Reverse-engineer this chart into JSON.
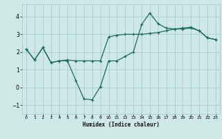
{
  "xlabel": "Humidex (Indice chaleur)",
  "bg_color": "#cde8e5",
  "grid_color": "#a8ccca",
  "line_color": "#1a6b5a",
  "line1_x": [
    0,
    1,
    2,
    3,
    4,
    5,
    6,
    7,
    8,
    9,
    10,
    11,
    12,
    13,
    14,
    15,
    16,
    17,
    18,
    19,
    20,
    21,
    22,
    23
  ],
  "line1_y": [
    2.15,
    1.55,
    2.25,
    1.4,
    1.5,
    1.55,
    1.5,
    1.5,
    1.5,
    1.5,
    2.85,
    2.95,
    3.0,
    3.0,
    3.0,
    3.05,
    3.1,
    3.2,
    3.3,
    3.35,
    3.4,
    3.2,
    2.8,
    2.7
  ],
  "line2_x": [
    0,
    1,
    2,
    3,
    4,
    5,
    6,
    7,
    8,
    9,
    10,
    11,
    12,
    13,
    14,
    15,
    16,
    17,
    18,
    19,
    20,
    21,
    22,
    23
  ],
  "line2_y": [
    2.15,
    1.55,
    2.25,
    1.4,
    1.5,
    1.5,
    0.4,
    -0.65,
    -0.7,
    0.05,
    1.5,
    1.5,
    1.75,
    2.0,
    3.55,
    4.2,
    3.6,
    3.35,
    3.3,
    3.3,
    3.35,
    3.2,
    2.8,
    2.7
  ],
  "ylim": [
    -1.5,
    4.7
  ],
  "xlim": [
    -0.5,
    23.5
  ],
  "yticks": [
    -1,
    0,
    1,
    2,
    3,
    4
  ],
  "xticks": [
    0,
    1,
    2,
    3,
    4,
    5,
    6,
    7,
    8,
    9,
    10,
    11,
    12,
    13,
    14,
    15,
    16,
    17,
    18,
    19,
    20,
    21,
    22,
    23
  ]
}
